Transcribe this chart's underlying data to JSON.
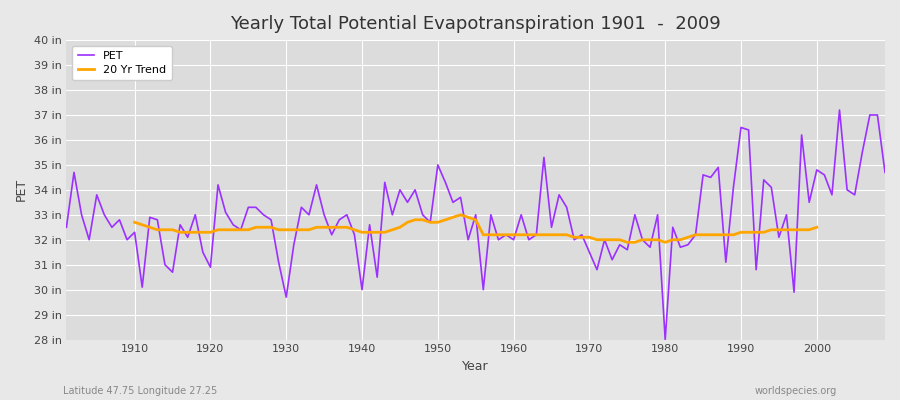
{
  "title": "Yearly Total Potential Evapotranspiration 1901  -  2009",
  "xlabel": "Year",
  "ylabel": "PET",
  "subtitle_left": "Latitude 47.75 Longitude 27.25",
  "subtitle_right": "worldspecies.org",
  "pet_color": "#9B30FF",
  "trend_color": "#FFA500",
  "bg_color": "#E8E8E8",
  "plot_bg_color": "#DCDCDC",
  "grid_color": "#FFFFFF",
  "ylim": [
    28,
    40
  ],
  "ytick_labels": [
    "28 in",
    "29 in",
    "30 in",
    "31 in",
    "32 in",
    "33 in",
    "34 in",
    "35 in",
    "36 in",
    "37 in",
    "38 in",
    "39 in",
    "40 in"
  ],
  "ytick_values": [
    28,
    29,
    30,
    31,
    32,
    33,
    34,
    35,
    36,
    37,
    38,
    39,
    40
  ],
  "years": [
    1901,
    1902,
    1903,
    1904,
    1905,
    1906,
    1907,
    1908,
    1909,
    1910,
    1911,
    1912,
    1913,
    1914,
    1915,
    1916,
    1917,
    1918,
    1919,
    1920,
    1921,
    1922,
    1923,
    1924,
    1925,
    1926,
    1927,
    1928,
    1929,
    1930,
    1931,
    1932,
    1933,
    1934,
    1935,
    1936,
    1937,
    1938,
    1939,
    1940,
    1941,
    1942,
    1943,
    1944,
    1945,
    1946,
    1947,
    1948,
    1949,
    1950,
    1951,
    1952,
    1953,
    1954,
    1955,
    1956,
    1957,
    1958,
    1959,
    1960,
    1961,
    1962,
    1963,
    1964,
    1965,
    1966,
    1967,
    1968,
    1969,
    1970,
    1971,
    1972,
    1973,
    1974,
    1975,
    1976,
    1977,
    1978,
    1979,
    1980,
    1981,
    1982,
    1983,
    1984,
    1985,
    1986,
    1987,
    1988,
    1989,
    1990,
    1991,
    1992,
    1993,
    1994,
    1995,
    1996,
    1997,
    1998,
    1999,
    2000,
    2001,
    2002,
    2003,
    2004,
    2005,
    2006,
    2007,
    2008,
    2009
  ],
  "pet_values": [
    32.5,
    34.7,
    33.0,
    32.0,
    33.8,
    33.0,
    32.5,
    32.8,
    32.0,
    32.3,
    30.1,
    32.9,
    32.8,
    31.0,
    30.7,
    32.6,
    32.1,
    33.0,
    31.5,
    30.9,
    34.2,
    33.1,
    32.6,
    32.4,
    33.3,
    33.3,
    33.0,
    32.8,
    31.1,
    29.7,
    31.8,
    33.3,
    33.0,
    34.2,
    33.0,
    32.2,
    32.8,
    33.0,
    32.2,
    30.0,
    32.6,
    30.5,
    34.3,
    33.0,
    34.0,
    33.5,
    34.0,
    33.0,
    32.7,
    35.0,
    34.3,
    33.5,
    33.7,
    32.0,
    33.0,
    30.0,
    33.0,
    32.0,
    32.2,
    32.0,
    33.0,
    32.0,
    32.2,
    35.3,
    32.5,
    33.8,
    33.3,
    32.0,
    32.2,
    31.5,
    30.8,
    32.0,
    31.2,
    31.8,
    31.6,
    33.0,
    32.0,
    31.7,
    33.0,
    28.0,
    32.5,
    31.7,
    31.8,
    32.2,
    34.6,
    34.5,
    34.9,
    31.1,
    34.1,
    36.5,
    36.4,
    30.8,
    34.4,
    34.1,
    32.1,
    33.0,
    29.9,
    36.2,
    33.5,
    34.8,
    34.6,
    33.8,
    37.2,
    34.0,
    33.8,
    35.5,
    37.0,
    37.0,
    34.7
  ],
  "trend_years": [
    1910,
    1911,
    1912,
    1913,
    1914,
    1915,
    1916,
    1917,
    1918,
    1919,
    1920,
    1921,
    1922,
    1923,
    1924,
    1925,
    1926,
    1927,
    1928,
    1929,
    1930,
    1931,
    1932,
    1933,
    1934,
    1935,
    1936,
    1937,
    1938,
    1939,
    1940,
    1941,
    1942,
    1943,
    1944,
    1945,
    1946,
    1947,
    1948,
    1949,
    1950,
    1951,
    1952,
    1953,
    1954,
    1955,
    1956,
    1957,
    1958,
    1959,
    1960,
    1961,
    1962,
    1963,
    1964,
    1965,
    1966,
    1967,
    1968,
    1969,
    1970,
    1971,
    1972,
    1973,
    1974,
    1975,
    1976,
    1977,
    1978,
    1979,
    1980,
    1981,
    1982,
    1983,
    1984,
    1985,
    1986,
    1987,
    1988,
    1989,
    1990,
    1991,
    1992,
    1993,
    1994,
    1995,
    1996,
    1997,
    1998,
    1999,
    2000
  ],
  "trend_values": [
    32.7,
    32.6,
    32.5,
    32.4,
    32.4,
    32.4,
    32.3,
    32.3,
    32.3,
    32.3,
    32.3,
    32.4,
    32.4,
    32.4,
    32.4,
    32.4,
    32.5,
    32.5,
    32.5,
    32.4,
    32.4,
    32.4,
    32.4,
    32.4,
    32.5,
    32.5,
    32.5,
    32.5,
    32.5,
    32.4,
    32.3,
    32.3,
    32.3,
    32.3,
    32.4,
    32.5,
    32.7,
    32.8,
    32.8,
    32.7,
    32.7,
    32.8,
    32.9,
    33.0,
    32.9,
    32.8,
    32.2,
    32.2,
    32.2,
    32.2,
    32.2,
    32.2,
    32.2,
    32.2,
    32.2,
    32.2,
    32.2,
    32.2,
    32.1,
    32.1,
    32.1,
    32.0,
    32.0,
    32.0,
    32.0,
    31.9,
    31.9,
    32.0,
    32.0,
    32.0,
    31.9,
    32.0,
    32.0,
    32.1,
    32.2,
    32.2,
    32.2,
    32.2,
    32.2,
    32.2,
    32.3,
    32.3,
    32.3,
    32.3,
    32.4,
    32.4,
    32.4,
    32.4,
    32.4,
    32.4,
    32.5
  ]
}
